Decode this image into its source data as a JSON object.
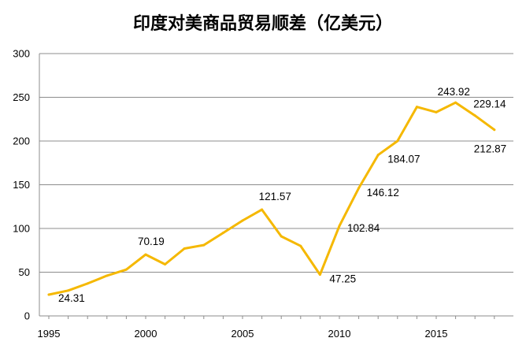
{
  "chart_data": {
    "type": "line",
    "title": "印度对美商品贸易顺差（亿美元）",
    "xlabel": "",
    "ylabel": "",
    "xlim": [
      1995,
      2018
    ],
    "ylim": [
      0,
      300
    ],
    "y_ticks": [
      0,
      50,
      100,
      150,
      200,
      250,
      300
    ],
    "x_ticks": [
      1995,
      2000,
      2005,
      2010,
      2015
    ],
    "grid": true,
    "line_color": "#F5B800",
    "x": [
      1995,
      1996,
      1997,
      1998,
      1999,
      2000,
      2001,
      2002,
      2003,
      2004,
      2005,
      2006,
      2007,
      2008,
      2009,
      2010,
      2011,
      2012,
      2013,
      2014,
      2015,
      2016,
      2017,
      2018
    ],
    "series": [
      {
        "values": [
          24.31,
          29,
          37,
          46,
          53,
          70.19,
          59,
          77,
          81,
          95,
          109,
          121.57,
          91,
          80,
          47.25,
          102.84,
          146.12,
          184.07,
          200,
          239,
          233,
          243.92,
          229.14,
          212.87
        ]
      }
    ],
    "data_labels": [
      {
        "x": 1995,
        "text": "24.31"
      },
      {
        "x": 2000,
        "text": "70.19"
      },
      {
        "x": 2006,
        "text": "121.57"
      },
      {
        "x": 2009,
        "text": "47.25"
      },
      {
        "x": 2010,
        "text": "102.84"
      },
      {
        "x": 2011,
        "text": "146.12"
      },
      {
        "x": 2012,
        "text": "184.07"
      },
      {
        "x": 2016,
        "text": "243.92"
      },
      {
        "x": 2017,
        "text": "229.14"
      },
      {
        "x": 2018,
        "text": "212.87"
      }
    ]
  }
}
